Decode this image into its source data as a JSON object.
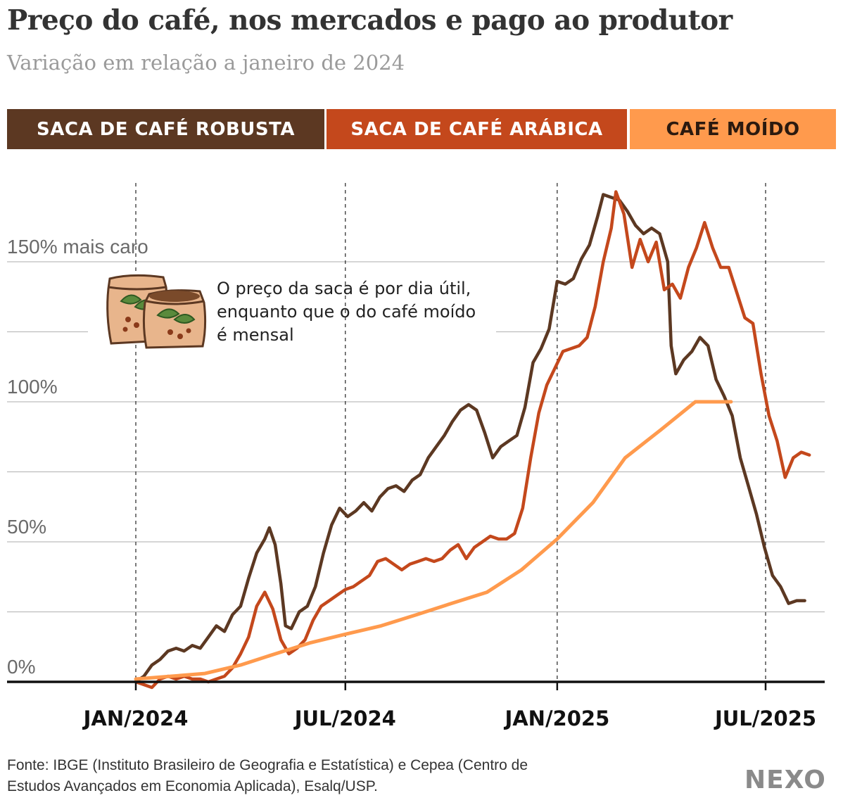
{
  "header": {
    "title": "Preço do café, nos mercados e pago ao produtor",
    "subtitle": "Variação em relação a janeiro de 2024"
  },
  "legend": {
    "robusta": "SACA DE CAFÉ ROBUSTA",
    "arabica": "SACA DE CAFÉ ARÁBICA",
    "moido": "CAFÉ MOÍDO"
  },
  "annotation": {
    "text": "O preço da saca é por dia útil, enquanto que o do café moído é mensal",
    "icon": "coffee-sacks-icon"
  },
  "footer": {
    "source": "Fonte: IBGE (Instituto Brasileiro de Geografia e Estatística) e Cepea (Centro de Estudos Avançados em Economia Aplicada), Esalq/USP.",
    "logo": "NEXO"
  },
  "chart_data": {
    "type": "line",
    "title": "Preço do café, nos mercados e pago ao produtor",
    "subtitle": "Variação em relação a janeiro de 2024",
    "xlabel": "",
    "ylabel": "",
    "ylim": [
      0,
      180
    ],
    "xlim": [
      "2024-01",
      "2025-08"
    ],
    "grid": true,
    "y_ticks": [
      {
        "value": 0,
        "label": "0%"
      },
      {
        "value": 50,
        "label": "50%"
      },
      {
        "value": 100,
        "label": "100%"
      },
      {
        "value": 150,
        "label": "150% mais caro"
      }
    ],
    "y_gridlines": [
      25,
      50,
      75,
      100,
      125,
      150
    ],
    "x_ticks": [
      {
        "value": "2024-01",
        "label": "JAN/2024"
      },
      {
        "value": "2024-07",
        "label": "JUL/2024"
      },
      {
        "value": "2025-01",
        "label": "JAN/2025"
      },
      {
        "value": "2025-07",
        "label": "JUL/2025"
      }
    ],
    "colors": {
      "robusta": "#5c3822",
      "arabica": "#c4481c",
      "moido": "#ff9a4d"
    },
    "series": [
      {
        "name": "SACA DE CAFÉ ROBUSTA",
        "key": "robusta",
        "points": [
          [
            "2024-01-01",
            0
          ],
          [
            "2024-01-08",
            2
          ],
          [
            "2024-01-15",
            6
          ],
          [
            "2024-01-22",
            8
          ],
          [
            "2024-01-29",
            11
          ],
          [
            "2024-02-05",
            12
          ],
          [
            "2024-02-12",
            11
          ],
          [
            "2024-02-19",
            13
          ],
          [
            "2024-02-26",
            12
          ],
          [
            "2024-03-04",
            16
          ],
          [
            "2024-03-11",
            20
          ],
          [
            "2024-03-18",
            18
          ],
          [
            "2024-03-25",
            24
          ],
          [
            "2024-04-01",
            27
          ],
          [
            "2024-04-08",
            37
          ],
          [
            "2024-04-15",
            46
          ],
          [
            "2024-04-22",
            51
          ],
          [
            "2024-04-26",
            55
          ],
          [
            "2024-05-01",
            49
          ],
          [
            "2024-05-06",
            35
          ],
          [
            "2024-05-10",
            20
          ],
          [
            "2024-05-15",
            19
          ],
          [
            "2024-05-22",
            25
          ],
          [
            "2024-05-29",
            27
          ],
          [
            "2024-06-05",
            34
          ],
          [
            "2024-06-12",
            46
          ],
          [
            "2024-06-19",
            56
          ],
          [
            "2024-06-26",
            62
          ],
          [
            "2024-07-03",
            59
          ],
          [
            "2024-07-10",
            61
          ],
          [
            "2024-07-17",
            64
          ],
          [
            "2024-07-24",
            61
          ],
          [
            "2024-07-31",
            66
          ],
          [
            "2024-08-07",
            69
          ],
          [
            "2024-08-14",
            70
          ],
          [
            "2024-08-21",
            68
          ],
          [
            "2024-08-28",
            72
          ],
          [
            "2024-09-04",
            74
          ],
          [
            "2024-09-11",
            80
          ],
          [
            "2024-09-18",
            84
          ],
          [
            "2024-09-25",
            88
          ],
          [
            "2024-10-02",
            93
          ],
          [
            "2024-10-09",
            97
          ],
          [
            "2024-10-16",
            99
          ],
          [
            "2024-10-23",
            97
          ],
          [
            "2024-10-30",
            89
          ],
          [
            "2024-11-06",
            80
          ],
          [
            "2024-11-13",
            84
          ],
          [
            "2024-11-20",
            86
          ],
          [
            "2024-11-27",
            88
          ],
          [
            "2024-12-04",
            98
          ],
          [
            "2024-12-11",
            114
          ],
          [
            "2024-12-18",
            119
          ],
          [
            "2024-12-25",
            126
          ],
          [
            "2025-01-01",
            143
          ],
          [
            "2025-01-08",
            142
          ],
          [
            "2025-01-15",
            144
          ],
          [
            "2025-01-22",
            151
          ],
          [
            "2025-01-29",
            156
          ],
          [
            "2025-02-05",
            166
          ],
          [
            "2025-02-10",
            174
          ],
          [
            "2025-02-17",
            173
          ],
          [
            "2025-02-24",
            172
          ],
          [
            "2025-03-03",
            168
          ],
          [
            "2025-03-10",
            163
          ],
          [
            "2025-03-17",
            160
          ],
          [
            "2025-03-24",
            162
          ],
          [
            "2025-03-31",
            160
          ],
          [
            "2025-04-07",
            150
          ],
          [
            "2025-04-10",
            120
          ],
          [
            "2025-04-14",
            110
          ],
          [
            "2025-04-21",
            115
          ],
          [
            "2025-04-28",
            118
          ],
          [
            "2025-05-05",
            123
          ],
          [
            "2025-05-12",
            120
          ],
          [
            "2025-05-19",
            108
          ],
          [
            "2025-05-26",
            102
          ],
          [
            "2025-06-02",
            95
          ],
          [
            "2025-06-09",
            80
          ],
          [
            "2025-06-16",
            70
          ],
          [
            "2025-06-23",
            60
          ],
          [
            "2025-06-30",
            48
          ],
          [
            "2025-07-07",
            38
          ],
          [
            "2025-07-14",
            34
          ],
          [
            "2025-07-21",
            28
          ],
          [
            "2025-07-28",
            29
          ],
          [
            "2025-08-04",
            29
          ]
        ]
      },
      {
        "name": "SACA DE CAFÉ ARÁBICA",
        "key": "arabica",
        "points": [
          [
            "2024-01-01",
            0
          ],
          [
            "2024-01-08",
            -1
          ],
          [
            "2024-01-15",
            -2
          ],
          [
            "2024-01-22",
            1
          ],
          [
            "2024-01-29",
            2
          ],
          [
            "2024-02-05",
            1
          ],
          [
            "2024-02-12",
            2
          ],
          [
            "2024-02-19",
            1
          ],
          [
            "2024-02-26",
            1
          ],
          [
            "2024-03-04",
            0
          ],
          [
            "2024-03-11",
            1
          ],
          [
            "2024-03-18",
            2
          ],
          [
            "2024-03-25",
            5
          ],
          [
            "2024-04-01",
            10
          ],
          [
            "2024-04-08",
            16
          ],
          [
            "2024-04-15",
            27
          ],
          [
            "2024-04-22",
            32
          ],
          [
            "2024-04-29",
            26
          ],
          [
            "2024-05-06",
            15
          ],
          [
            "2024-05-13",
            10
          ],
          [
            "2024-05-20",
            12
          ],
          [
            "2024-05-27",
            15
          ],
          [
            "2024-06-03",
            22
          ],
          [
            "2024-06-10",
            27
          ],
          [
            "2024-06-17",
            29
          ],
          [
            "2024-06-24",
            31
          ],
          [
            "2024-07-01",
            33
          ],
          [
            "2024-07-08",
            34
          ],
          [
            "2024-07-15",
            36
          ],
          [
            "2024-07-22",
            38
          ],
          [
            "2024-07-29",
            43
          ],
          [
            "2024-08-05",
            44
          ],
          [
            "2024-08-12",
            42
          ],
          [
            "2024-08-19",
            40
          ],
          [
            "2024-08-26",
            42
          ],
          [
            "2024-09-02",
            43
          ],
          [
            "2024-09-09",
            44
          ],
          [
            "2024-09-16",
            43
          ],
          [
            "2024-09-23",
            44
          ],
          [
            "2024-09-30",
            47
          ],
          [
            "2024-10-07",
            49
          ],
          [
            "2024-10-14",
            44
          ],
          [
            "2024-10-21",
            48
          ],
          [
            "2024-10-28",
            50
          ],
          [
            "2024-11-04",
            52
          ],
          [
            "2024-11-11",
            51
          ],
          [
            "2024-11-18",
            51
          ],
          [
            "2024-11-25",
            53
          ],
          [
            "2024-12-02",
            62
          ],
          [
            "2024-12-09",
            80
          ],
          [
            "2024-12-16",
            96
          ],
          [
            "2024-12-23",
            106
          ],
          [
            "2024-12-30",
            112
          ],
          [
            "2025-01-06",
            118
          ],
          [
            "2025-01-13",
            119
          ],
          [
            "2025-01-20",
            120
          ],
          [
            "2025-01-27",
            123
          ],
          [
            "2025-02-03",
            134
          ],
          [
            "2025-02-10",
            150
          ],
          [
            "2025-02-17",
            162
          ],
          [
            "2025-02-21",
            175
          ],
          [
            "2025-02-28",
            167
          ],
          [
            "2025-03-07",
            148
          ],
          [
            "2025-03-14",
            158
          ],
          [
            "2025-03-21",
            150
          ],
          [
            "2025-03-28",
            157
          ],
          [
            "2025-04-04",
            140
          ],
          [
            "2025-04-11",
            142
          ],
          [
            "2025-04-18",
            137
          ],
          [
            "2025-04-25",
            148
          ],
          [
            "2025-05-02",
            155
          ],
          [
            "2025-05-09",
            164
          ],
          [
            "2025-05-16",
            155
          ],
          [
            "2025-05-23",
            148
          ],
          [
            "2025-05-30",
            148
          ],
          [
            "2025-06-06",
            139
          ],
          [
            "2025-06-13",
            130
          ],
          [
            "2025-06-20",
            128
          ],
          [
            "2025-06-27",
            110
          ],
          [
            "2025-07-04",
            95
          ],
          [
            "2025-07-11",
            86
          ],
          [
            "2025-07-18",
            73
          ],
          [
            "2025-07-25",
            80
          ],
          [
            "2025-08-01",
            82
          ],
          [
            "2025-08-08",
            81
          ]
        ]
      },
      {
        "name": "CAFÉ MOÍDO",
        "key": "moido",
        "points": [
          [
            "2024-01-01",
            1
          ],
          [
            "2024-02-01",
            2
          ],
          [
            "2024-03-01",
            3
          ],
          [
            "2024-04-01",
            6
          ],
          [
            "2024-05-01",
            10
          ],
          [
            "2024-06-01",
            14
          ],
          [
            "2024-07-01",
            17
          ],
          [
            "2024-08-01",
            20
          ],
          [
            "2024-09-01",
            24
          ],
          [
            "2024-10-01",
            28
          ],
          [
            "2024-11-01",
            32
          ],
          [
            "2024-12-01",
            40
          ],
          [
            "2025-01-01",
            51
          ],
          [
            "2025-02-01",
            64
          ],
          [
            "2025-03-01",
            80
          ],
          [
            "2025-04-01",
            90
          ],
          [
            "2025-05-01",
            100
          ],
          [
            "2025-06-01",
            100
          ]
        ]
      }
    ]
  }
}
